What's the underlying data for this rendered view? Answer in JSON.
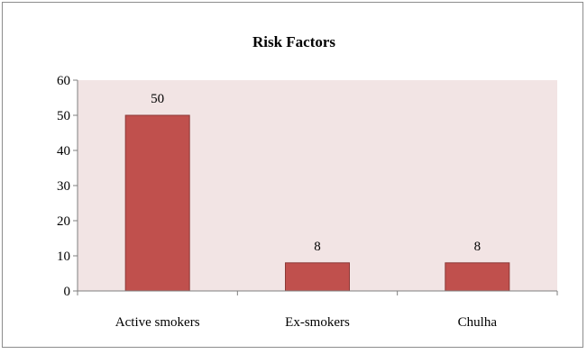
{
  "chart_data": {
    "type": "bar",
    "title": "Risk Factors",
    "xlabel": "",
    "ylabel": "",
    "categories": [
      "Active smokers",
      "Ex-smokers",
      "Chulha"
    ],
    "values": [
      50,
      8,
      8
    ],
    "data_labels": [
      "50",
      "8",
      "8"
    ],
    "ylim": [
      0,
      60
    ],
    "yticks": [
      "0",
      "10",
      "20",
      "30",
      "40",
      "50",
      "60"
    ],
    "grid": false,
    "legend": "none",
    "colors": {
      "bar_fill": "#c0504d",
      "bar_stroke": "#8c3836",
      "plot_background": "#f2e4e4",
      "axis": "#7f7f7f"
    }
  }
}
